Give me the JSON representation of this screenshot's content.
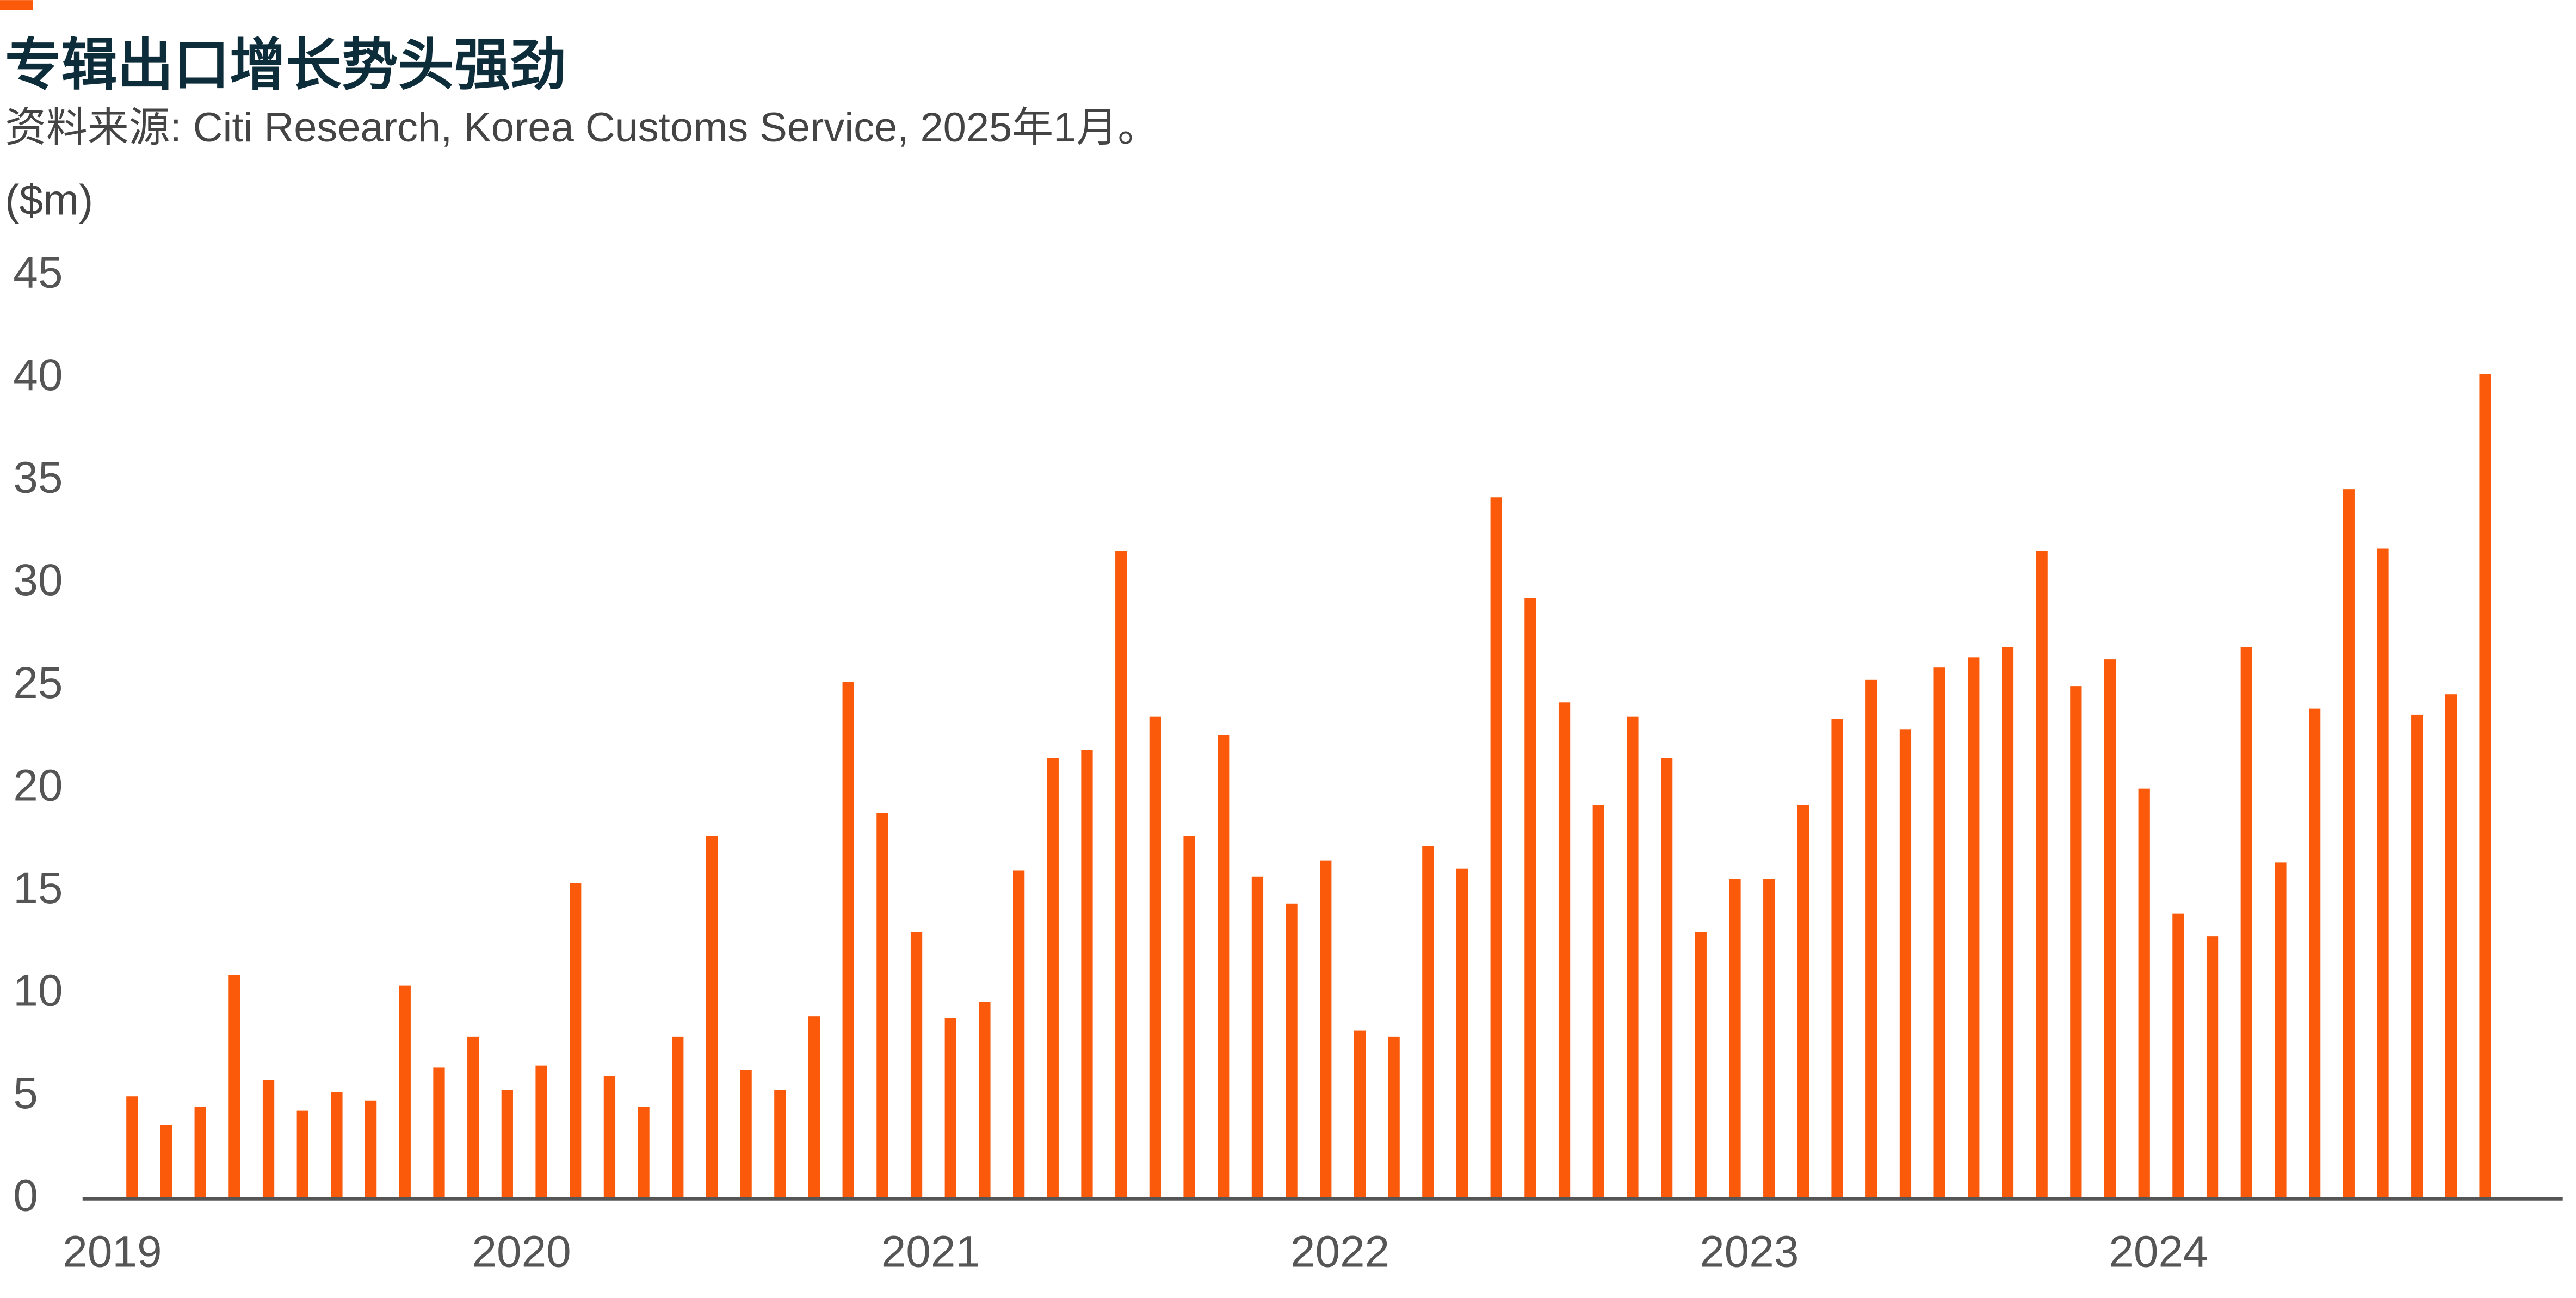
{
  "chart_data": {
    "type": "bar",
    "title": "专辑出口增长势头强劲",
    "subtitle": "资料来源: Citi Research, Korea Customs Service, 2025年1月。",
    "y_axis_label": "($m)",
    "categories": [
      "2019",
      null,
      null,
      null,
      null,
      null,
      null,
      null,
      null,
      null,
      null,
      null,
      "2020",
      null,
      null,
      null,
      null,
      null,
      null,
      null,
      null,
      null,
      null,
      null,
      "2021",
      null,
      null,
      null,
      null,
      null,
      null,
      null,
      null,
      null,
      null,
      null,
      "2022",
      null,
      null,
      null,
      null,
      null,
      null,
      null,
      null,
      null,
      null,
      null,
      "2023",
      null,
      null,
      null,
      null,
      null,
      null,
      null,
      null,
      null,
      null,
      null,
      "2024",
      null,
      null,
      null,
      null,
      null,
      null,
      null,
      null,
      null
    ],
    "values": [
      5.0,
      3.6,
      4.5,
      10.9,
      5.8,
      4.3,
      5.2,
      4.8,
      10.4,
      6.4,
      7.9,
      5.3,
      6.5,
      15.4,
      6.0,
      4.5,
      7.9,
      17.7,
      6.3,
      5.3,
      8.9,
      25.2,
      18.8,
      13.0,
      8.8,
      9.6,
      16.0,
      21.5,
      21.9,
      31.6,
      23.5,
      17.7,
      22.6,
      15.7,
      14.4,
      16.5,
      8.2,
      7.9,
      17.2,
      16.1,
      34.2,
      29.3,
      24.2,
      19.2,
      23.5,
      21.5,
      13.0,
      15.6,
      15.6,
      19.2,
      23.4,
      25.3,
      22.9,
      25.9,
      26.4,
      26.9,
      31.6,
      25.0,
      26.3,
      20.0,
      13.9,
      12.8,
      26.9,
      16.4,
      23.9,
      34.6,
      31.7,
      23.6,
      24.6,
      40.2
    ],
    "color": "#fa5a0a",
    "ylim": [
      0,
      45
    ],
    "yticks": [
      0,
      5,
      10,
      15,
      20,
      25,
      30,
      35,
      40,
      45
    ],
    "grid": false
  }
}
